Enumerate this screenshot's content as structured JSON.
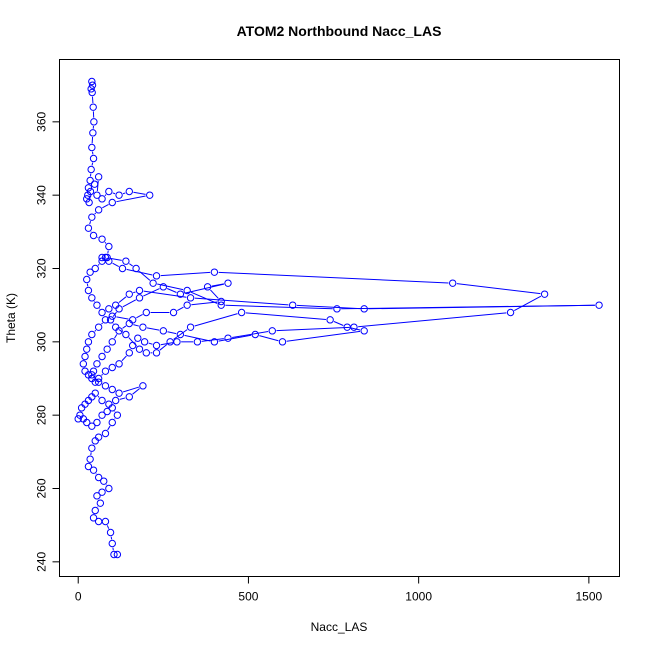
{
  "chart_data": {
    "type": "line",
    "title": "ATOM2 Northbound Nacc_LAS",
    "xlabel": "Nacc_LAS",
    "ylabel": "Theta (K)",
    "xlim": [
      -55,
      1590
    ],
    "ylim": [
      236,
      377
    ],
    "x_ticks": [
      0,
      500,
      1000,
      1500
    ],
    "y_ticks": [
      240,
      260,
      280,
      300,
      320,
      340,
      360
    ],
    "grid": false,
    "series_color": "#0000ff",
    "marker": "open-circle",
    "series": [
      {
        "points": [
          [
            40,
            371
          ],
          [
            42,
            370
          ],
          [
            38,
            369
          ],
          [
            41,
            368
          ],
          [
            44,
            364
          ],
          [
            46,
            360
          ],
          [
            43,
            357
          ],
          [
            40,
            353
          ],
          [
            45,
            350
          ],
          [
            38,
            347
          ],
          [
            35,
            344
          ],
          [
            30,
            342
          ],
          [
            28,
            340
          ],
          [
            25,
            339
          ],
          [
            32,
            338
          ],
          [
            36,
            341
          ],
          [
            48,
            343
          ],
          [
            60,
            345
          ],
          [
            55,
            340
          ],
          [
            70,
            339
          ],
          [
            90,
            341
          ],
          [
            120,
            340
          ],
          [
            150,
            341
          ],
          [
            210,
            340
          ],
          [
            100,
            338
          ],
          [
            60,
            336
          ],
          [
            40,
            334
          ],
          [
            30,
            331
          ],
          [
            45,
            329
          ],
          [
            70,
            328
          ],
          [
            90,
            326
          ],
          [
            85,
            323
          ],
          [
            70,
            322
          ],
          [
            50,
            320
          ],
          [
            35,
            319
          ],
          [
            25,
            317
          ],
          [
            30,
            314
          ],
          [
            40,
            312
          ],
          [
            55,
            310
          ],
          [
            70,
            308
          ],
          [
            80,
            306
          ],
          [
            60,
            304
          ],
          [
            40,
            302
          ],
          [
            30,
            300
          ],
          [
            25,
            298
          ],
          [
            20,
            296
          ],
          [
            15,
            294
          ],
          [
            20,
            292
          ],
          [
            30,
            291
          ],
          [
            40,
            290
          ],
          [
            50,
            289
          ],
          [
            60,
            290
          ],
          [
            80,
            292
          ],
          [
            100,
            293
          ],
          [
            120,
            294
          ],
          [
            150,
            297
          ],
          [
            160,
            299
          ],
          [
            175,
            301
          ],
          [
            195,
            300
          ],
          [
            230,
            299
          ],
          [
            290,
            300
          ],
          [
            350,
            300
          ],
          [
            440,
            301
          ],
          [
            570,
            303
          ],
          [
            810,
            304
          ],
          [
            1270,
            308
          ],
          [
            1370,
            313
          ],
          [
            1100,
            316
          ],
          [
            400,
            319
          ],
          [
            230,
            318
          ],
          [
            130,
            320
          ],
          [
            90,
            322
          ],
          [
            70,
            323
          ],
          [
            80,
            323
          ],
          [
            140,
            322
          ],
          [
            170,
            320
          ],
          [
            220,
            316
          ],
          [
            320,
            314
          ],
          [
            420,
            310
          ],
          [
            760,
            309
          ],
          [
            1530,
            310
          ],
          [
            840,
            309
          ],
          [
            630,
            310
          ],
          [
            330,
            312
          ],
          [
            180,
            314
          ],
          [
            150,
            313
          ],
          [
            110,
            310
          ],
          [
            90,
            309
          ],
          [
            100,
            307
          ],
          [
            160,
            306
          ],
          [
            200,
            308
          ],
          [
            280,
            308
          ],
          [
            320,
            310
          ],
          [
            420,
            311
          ],
          [
            380,
            315
          ],
          [
            440,
            316
          ],
          [
            300,
            313
          ],
          [
            250,
            315
          ],
          [
            180,
            312
          ],
          [
            120,
            309
          ],
          [
            95,
            306
          ],
          [
            110,
            304
          ],
          [
            140,
            302
          ],
          [
            180,
            298
          ],
          [
            200,
            297
          ],
          [
            230,
            297
          ],
          [
            270,
            300
          ],
          [
            330,
            304
          ],
          [
            480,
            308
          ],
          [
            740,
            306
          ],
          [
            790,
            304
          ],
          [
            840,
            303
          ],
          [
            600,
            300
          ],
          [
            520,
            302
          ],
          [
            400,
            300
          ],
          [
            300,
            302
          ],
          [
            250,
            303
          ],
          [
            190,
            304
          ],
          [
            150,
            305
          ],
          [
            120,
            303
          ],
          [
            100,
            300
          ],
          [
            85,
            298
          ],
          [
            70,
            296
          ],
          [
            55,
            294
          ],
          [
            45,
            292
          ],
          [
            40,
            291
          ],
          [
            60,
            289
          ],
          [
            80,
            288
          ],
          [
            100,
            287
          ],
          [
            120,
            286
          ],
          [
            190,
            288
          ],
          [
            150,
            285
          ],
          [
            110,
            284
          ],
          [
            90,
            283
          ],
          [
            70,
            284
          ],
          [
            50,
            286
          ],
          [
            40,
            285
          ],
          [
            30,
            284
          ],
          [
            20,
            283
          ],
          [
            10,
            282
          ],
          [
            5,
            280
          ],
          [
            0,
            279
          ],
          [
            15,
            279
          ],
          [
            25,
            278
          ],
          [
            40,
            277
          ],
          [
            55,
            278
          ],
          [
            70,
            280
          ],
          [
            85,
            281
          ],
          [
            100,
            282
          ],
          [
            115,
            280
          ],
          [
            100,
            278
          ],
          [
            80,
            275
          ],
          [
            60,
            274
          ],
          [
            50,
            273
          ],
          [
            40,
            271
          ],
          [
            35,
            268
          ],
          [
            30,
            266
          ],
          [
            45,
            265
          ],
          [
            60,
            263
          ],
          [
            75,
            262
          ],
          [
            90,
            260
          ],
          [
            70,
            259
          ],
          [
            55,
            258
          ],
          [
            65,
            256
          ],
          [
            50,
            254
          ],
          [
            45,
            252
          ],
          [
            60,
            251
          ],
          [
            80,
            251
          ],
          [
            95,
            248
          ],
          [
            100,
            245
          ],
          [
            105,
            242
          ],
          [
            115,
            242
          ]
        ]
      }
    ]
  }
}
